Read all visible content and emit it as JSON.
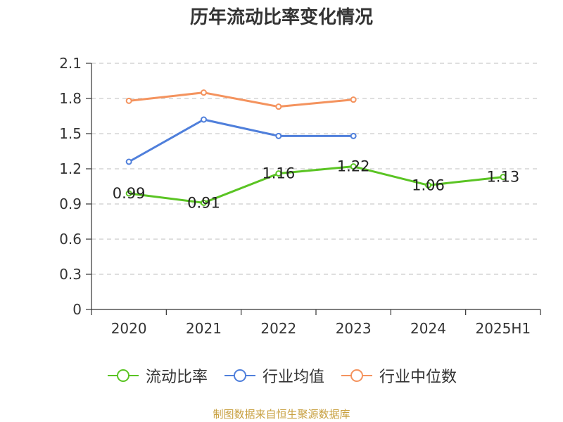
{
  "chart_data": {
    "type": "line",
    "title": "历年流动比率变化情况",
    "categories": [
      "2020",
      "2021",
      "2022",
      "2023",
      "2024",
      "2025H1"
    ],
    "y_ticks": [
      "0",
      "0.3",
      "0.6",
      "0.9",
      "1.2",
      "1.5",
      "1.8",
      "2.1"
    ],
    "ylim": [
      0,
      2.1
    ],
    "grid": "horizontal dashed",
    "legend_position": "bottom",
    "series": [
      {
        "name": "流动比率",
        "color": "#5ac423",
        "values": [
          0.99,
          0.91,
          1.16,
          1.22,
          1.06,
          1.13
        ],
        "labels": [
          "0.99",
          "0.91",
          "1.16",
          "1.22",
          "1.06",
          "1.13"
        ]
      },
      {
        "name": "行业均值",
        "color": "#4f7fdb",
        "values": [
          1.26,
          1.62,
          1.48,
          1.48,
          null,
          null
        ]
      },
      {
        "name": "行业中位数",
        "color": "#f4935e",
        "values": [
          1.78,
          1.85,
          1.73,
          1.79,
          null,
          null
        ]
      }
    ]
  },
  "source_text": "制图数据来自恒生聚源数据库"
}
